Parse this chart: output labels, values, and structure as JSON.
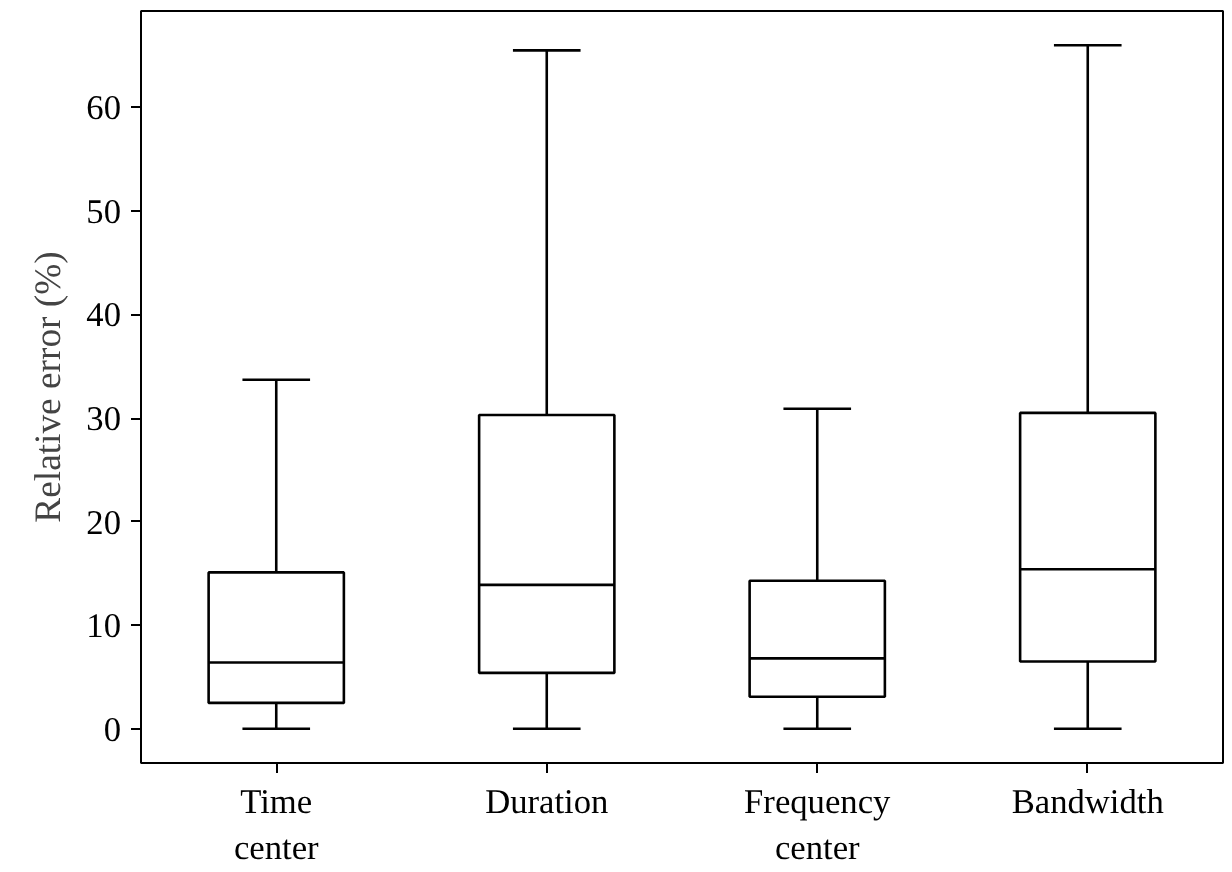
{
  "chart_data": {
    "type": "box",
    "ylabel": "Relative error (%)",
    "categories": [
      "Time\ncenter",
      "Duration",
      "Frequency\ncenter",
      "Bandwidth"
    ],
    "boxes": [
      {
        "low": 0,
        "q1": 2.5,
        "median": 6.4,
        "q3": 15.1,
        "high": 33.7
      },
      {
        "low": 0,
        "q1": 5.4,
        "median": 13.9,
        "q3": 30.3,
        "high": 65.5
      },
      {
        "low": 0,
        "q1": 3.1,
        "median": 6.8,
        "q3": 14.3,
        "high": 30.9
      },
      {
        "low": 0,
        "q1": 6.5,
        "median": 15.4,
        "q3": 30.5,
        "high": 66.0
      }
    ],
    "ylim": [
      -3.3,
      69.3
    ],
    "yticks": [
      0,
      10,
      20,
      30,
      40,
      50,
      60
    ],
    "grid": false
  }
}
